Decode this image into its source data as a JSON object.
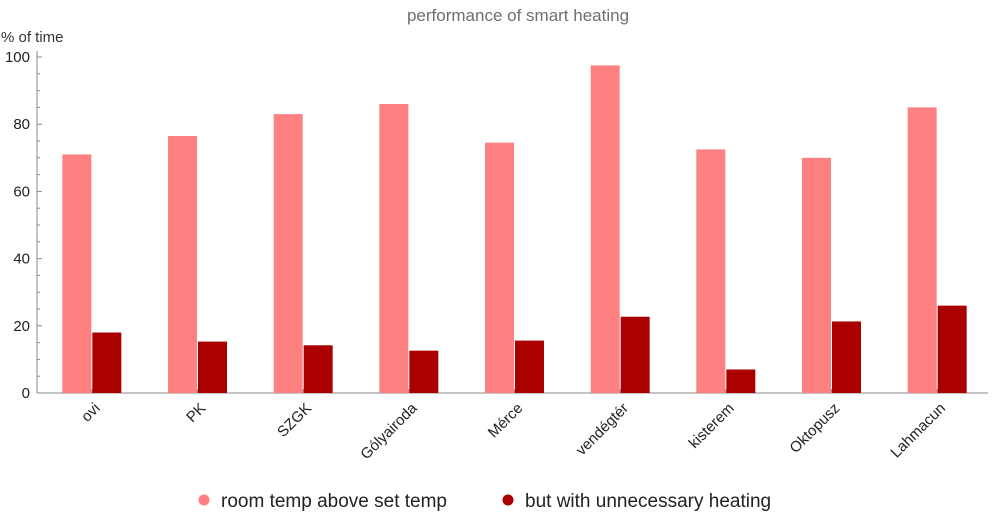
{
  "chart_data": {
    "type": "bar",
    "title": "performance of smart heating",
    "xlabel": "",
    "ylabel": "% of time",
    "ylim": [
      0,
      100
    ],
    "yticks": [
      0,
      20,
      40,
      60,
      80,
      100
    ],
    "categories": [
      "ovi",
      "PK",
      "SZGK",
      "Gólyairoda",
      "Mérce",
      "vendégtér",
      "kisterem",
      "Oktopusz",
      "Lahmacun"
    ],
    "series": [
      {
        "name": "room temp above set temp",
        "color": "#ff8080",
        "values": [
          71,
          76.5,
          83,
          86,
          74.5,
          97.5,
          72.5,
          70,
          85
        ]
      },
      {
        "name": "but with unnecessary heating",
        "color": "#aa0000",
        "values": [
          18,
          15.3,
          14.2,
          12.6,
          15.6,
          22.7,
          7,
          21.3,
          26
        ]
      }
    ],
    "grid": false,
    "legend": "bottom"
  }
}
